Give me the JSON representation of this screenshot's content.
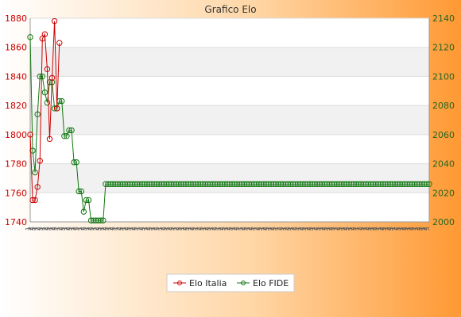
{
  "chart_data": {
    "type": "line",
    "title": "Grafico Elo",
    "x_tick_labels": [
      "1",
      "2",
      "3"
    ],
    "y_left": {
      "range": [
        1740,
        1880
      ],
      "ticks": [
        1740,
        1760,
        1780,
        1800,
        1820,
        1840,
        1860,
        1880
      ]
    },
    "y_right": {
      "range": [
        2000,
        2140
      ],
      "ticks": [
        2000,
        2020,
        2040,
        2060,
        2080,
        2100,
        2120,
        2140
      ]
    },
    "legend": {
      "placement": "bottom-center"
    },
    "grid": true,
    "colors": {
      "elo_italia": "#cc0000",
      "elo_fide": "#117711",
      "background_left": "#ffffff",
      "background_right": "#ff9933"
    },
    "series": [
      {
        "name": "Elo Italia",
        "axis": "left",
        "values": [
          1800,
          1755,
          1755,
          1764,
          1782,
          1866,
          1869,
          1845,
          1797,
          1839,
          1878,
          1818,
          1863
        ]
      },
      {
        "name": "Elo FIDE",
        "axis": "right",
        "values": [
          2127,
          2049,
          2034,
          2074,
          2100,
          2100,
          2089,
          2082,
          2096,
          2096,
          2078,
          2078,
          2083,
          2083,
          2059,
          2059,
          2063,
          2063,
          2041,
          2041,
          2021,
          2021,
          2007,
          2015,
          2015,
          2001,
          2001,
          2001,
          2001,
          2001,
          2001,
          2026,
          2026,
          2026,
          2026,
          2026,
          2026,
          2026,
          2026,
          2026,
          2026,
          2026,
          2026,
          2026,
          2026,
          2026,
          2026,
          2026,
          2026,
          2026,
          2026,
          2026,
          2026,
          2026,
          2026,
          2026,
          2026,
          2026,
          2026,
          2026,
          2026,
          2026,
          2026,
          2026,
          2026,
          2026,
          2026,
          2026,
          2026,
          2026,
          2026,
          2026,
          2026,
          2026,
          2026,
          2026,
          2026,
          2026,
          2026,
          2026,
          2026,
          2026,
          2026,
          2026,
          2026,
          2026,
          2026,
          2026,
          2026,
          2026,
          2026,
          2026,
          2026,
          2026,
          2026,
          2026,
          2026,
          2026,
          2026,
          2026,
          2026,
          2026,
          2026,
          2026,
          2026,
          2026,
          2026,
          2026,
          2026,
          2026,
          2026,
          2026,
          2026,
          2026,
          2026,
          2026,
          2026,
          2026,
          2026,
          2026,
          2026,
          2026,
          2026,
          2026,
          2026,
          2026,
          2026,
          2026,
          2026,
          2026,
          2026,
          2026,
          2026,
          2026,
          2026,
          2026,
          2026,
          2026,
          2026,
          2026,
          2026,
          2026,
          2026,
          2026,
          2026,
          2026,
          2026,
          2026,
          2026,
          2026,
          2026,
          2026,
          2026,
          2026,
          2026,
          2026,
          2026,
          2026,
          2026,
          2026,
          2026,
          2026,
          2026,
          2026,
          2026
        ]
      }
    ]
  }
}
